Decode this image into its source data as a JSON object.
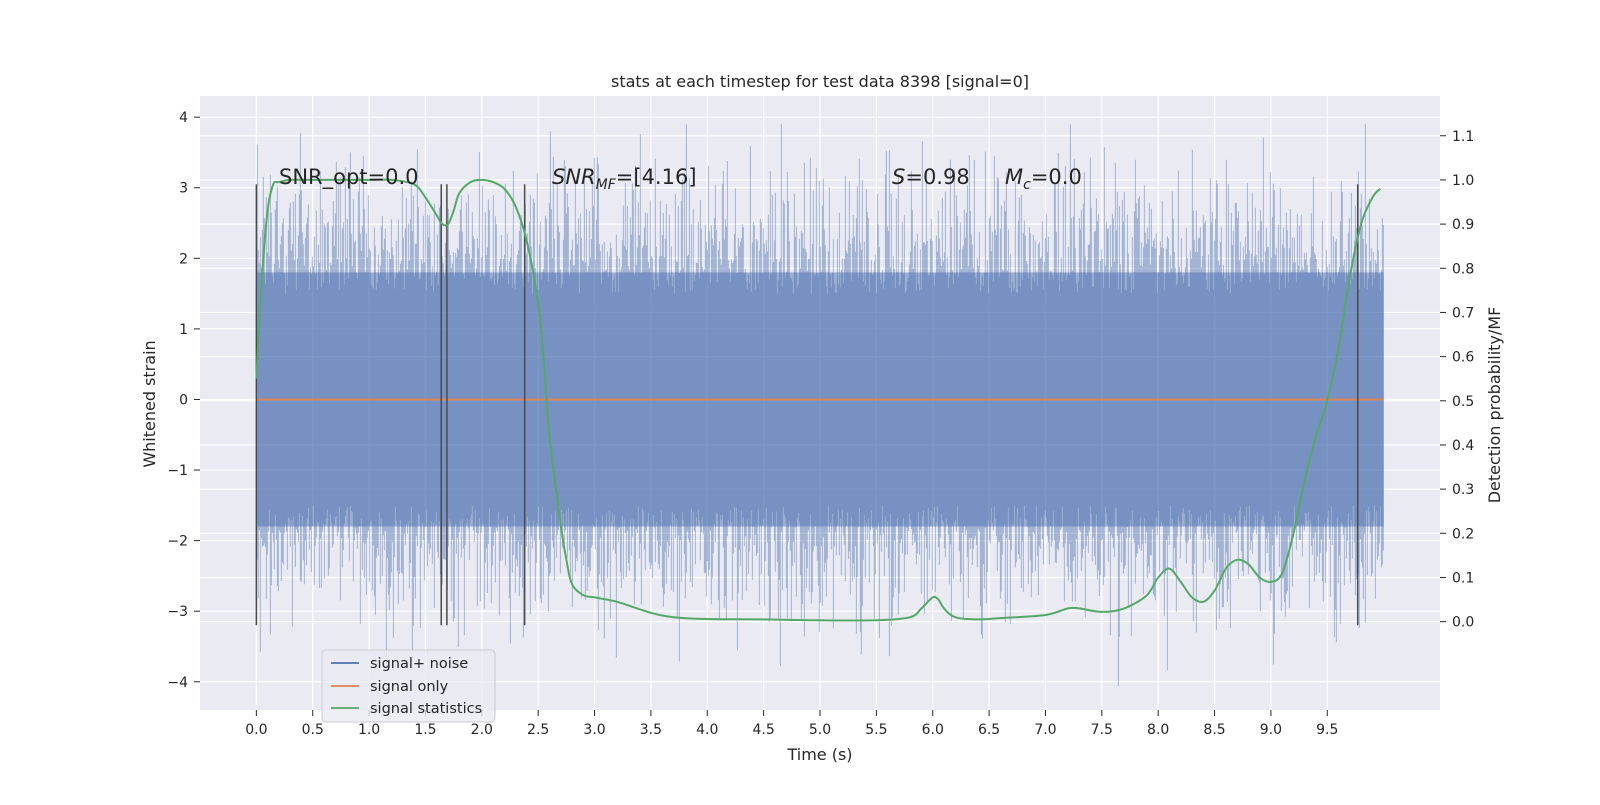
{
  "chart_data": {
    "type": "line",
    "title": "stats at each timestep for test data 8398 [signal=0]",
    "xlabel": "Time (s)",
    "ylabel": "Whitened strain",
    "ylabel_right": "Detection probability/MF",
    "xlim": [
      -0.5,
      10.5
    ],
    "ylim": [
      -4.4,
      4.3
    ],
    "ylim_right": [
      -0.2,
      1.19
    ],
    "grid": true,
    "legend_position": "lower-left",
    "x_ticks": [
      "0.0",
      "0.5",
      "1.0",
      "1.5",
      "2.0",
      "2.5",
      "3.0",
      "3.5",
      "4.0",
      "4.5",
      "5.0",
      "5.5",
      "6.0",
      "6.5",
      "7.0",
      "7.5",
      "8.0",
      "8.5",
      "9.0",
      "9.5"
    ],
    "y_ticks": [
      "−4",
      "−3",
      "−2",
      "−1",
      "0",
      "1",
      "2",
      "3",
      "4"
    ],
    "y_ticks_right": [
      "0.0",
      "0.1",
      "0.2",
      "0.3",
      "0.4",
      "0.5",
      "0.6",
      "0.7",
      "0.8",
      "0.9",
      "1.0",
      "1.1"
    ],
    "annotations": {
      "snr_opt": "SNR_opt=0.0",
      "snr_mf_sym": "SNR",
      "snr_mf_sub": "MF",
      "snr_mf_val": "=[4.16]",
      "s_sym": "S",
      "s_val": "=0.98",
      "mc_sym": "M",
      "mc_sub": "c",
      "mc_val": "=0.0"
    },
    "vlines_x": [
      0.0,
      1.64,
      1.69,
      2.38,
      9.77
    ],
    "series": [
      {
        "name": "signal+ noise",
        "color": "#4c72b0",
        "kind": "noise",
        "x_range": [
          0.0,
          10.0
        ],
        "core_amplitude": [
          -1.8,
          1.8
        ],
        "extreme_range": [
          -4.06,
          3.9
        ]
      },
      {
        "name": "signal only",
        "color": "#dd8452",
        "x": [
          0.0,
          10.0
        ],
        "y": [
          0.0,
          0.0
        ]
      },
      {
        "name": "signal statistics",
        "color": "#55a868",
        "axis": "right",
        "x": [
          0.0,
          0.05,
          0.1,
          0.15,
          0.2,
          0.3,
          0.5,
          0.8,
          1.0,
          1.2,
          1.4,
          1.5,
          1.6,
          1.65,
          1.7,
          1.75,
          1.8,
          1.9,
          2.0,
          2.1,
          2.2,
          2.3,
          2.4,
          2.5,
          2.55,
          2.6,
          2.7,
          2.75,
          2.8,
          2.9,
          3.0,
          3.2,
          3.5,
          3.7,
          4.0,
          4.5,
          5.0,
          5.5,
          5.8,
          5.9,
          6.0,
          6.05,
          6.1,
          6.2,
          6.4,
          6.6,
          7.0,
          7.2,
          7.3,
          7.5,
          7.7,
          7.9,
          8.0,
          8.1,
          8.2,
          8.3,
          8.4,
          8.5,
          8.6,
          8.7,
          8.8,
          8.9,
          9.0,
          9.1,
          9.2,
          9.3,
          9.4,
          9.5,
          9.6,
          9.7,
          9.8,
          9.9,
          9.97
        ],
        "y": [
          0.55,
          0.78,
          0.93,
          0.99,
          0.995,
          1.0,
          1.0,
          1.0,
          1.0,
          1.0,
          0.99,
          0.96,
          0.92,
          0.9,
          0.9,
          0.93,
          0.97,
          0.995,
          1.0,
          0.995,
          0.98,
          0.94,
          0.86,
          0.72,
          0.59,
          0.42,
          0.22,
          0.14,
          0.085,
          0.06,
          0.055,
          0.045,
          0.02,
          0.01,
          0.006,
          0.005,
          0.003,
          0.003,
          0.01,
          0.03,
          0.055,
          0.05,
          0.03,
          0.01,
          0.005,
          0.008,
          0.015,
          0.03,
          0.03,
          0.022,
          0.03,
          0.06,
          0.1,
          0.12,
          0.09,
          0.055,
          0.045,
          0.07,
          0.12,
          0.14,
          0.13,
          0.1,
          0.09,
          0.11,
          0.2,
          0.32,
          0.42,
          0.5,
          0.62,
          0.78,
          0.9,
          0.96,
          0.98
        ]
      }
    ]
  }
}
